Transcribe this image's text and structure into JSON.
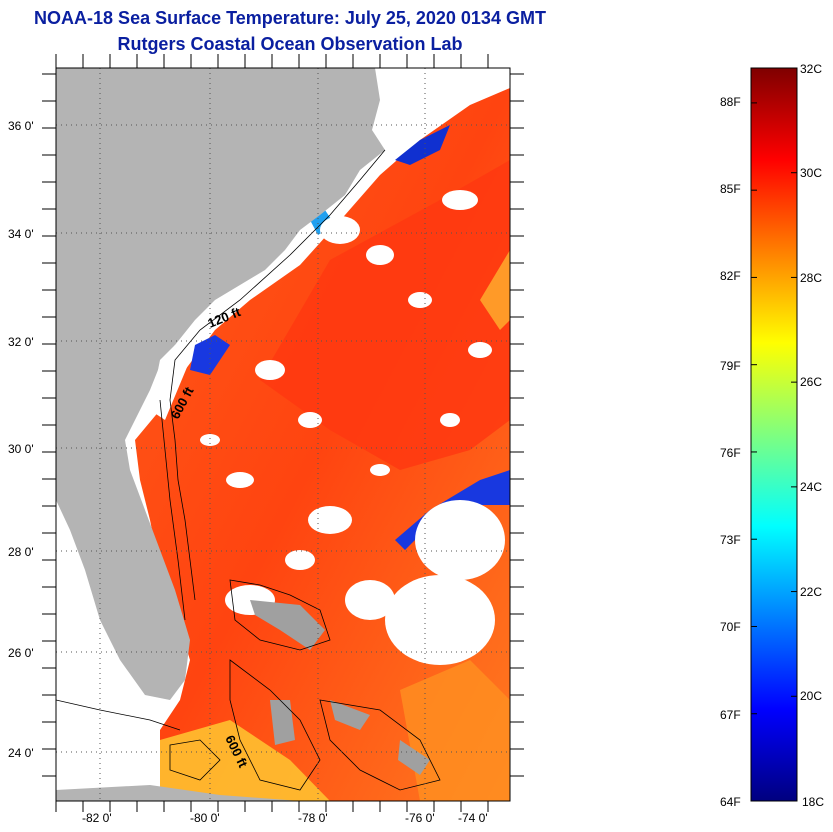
{
  "title": {
    "line1": "NOAA-18 Sea Surface Temperature:  July 25, 2020 0134 GMT",
    "line2": "Rutgers Coastal Ocean Observation Lab"
  },
  "map": {
    "lat_ticks": [
      "36 0'",
      "34 0'",
      "32 0'",
      "30 0'",
      "28 0'",
      "26 0'",
      "24 0'"
    ],
    "lon_ticks": [
      "-82 0'",
      "-80 0'",
      "-78 0'",
      "-76 0'",
      "-74 0'"
    ],
    "contour_labels": [
      "120 ft",
      "600 ft",
      "600 ft"
    ],
    "colors": {
      "land": "#b4b4b4",
      "cloud": "#ffffff",
      "sst_main": "#ff5a1e",
      "sst_warm": "#ff3a10",
      "sst_cool": "#ffa020",
      "coastal_cold": "#1030d0"
    }
  },
  "colorbar": {
    "celsius_ticks": [
      "32C",
      "30C",
      "28C",
      "26C",
      "24C",
      "22C",
      "20C",
      "18C"
    ],
    "fahrenheit_ticks": [
      "88F",
      "85F",
      "82F",
      "79F",
      "76F",
      "73F",
      "70F",
      "67F",
      "64F"
    ],
    "min_c": 18,
    "max_c": 32,
    "colormap": [
      "#00007f",
      "#0000ff",
      "#007fff",
      "#00ffff",
      "#7fff7f",
      "#ffff00",
      "#ff7f00",
      "#ff0000",
      "#7f0000"
    ]
  }
}
